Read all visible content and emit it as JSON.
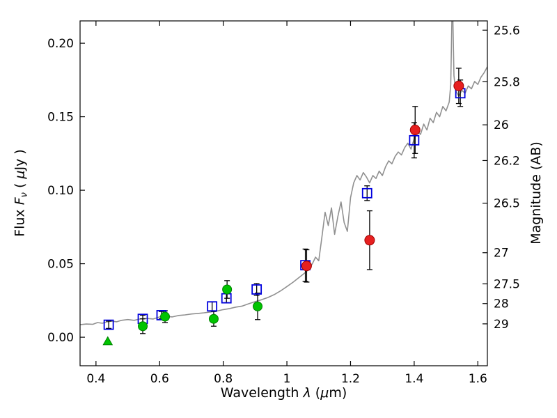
{
  "figure": {
    "background": "#ffffff",
    "frame_color": "#000000",
    "error_bar_color": "#000000"
  },
  "chart_data": {
    "type": "line",
    "title": "",
    "xlabel": "Wavelength λ (μm)",
    "ylabel": "Flux Fν ( μJy )",
    "y2label": "Magnitude (AB)",
    "xlabel_parts": {
      "t1": "Wavelength ",
      "i1": "λ",
      "t2": " (",
      "i2": "μ",
      "t3": "m)"
    },
    "ylabel_parts": {
      "t1": "Flux ",
      "i1": "F",
      "sub": "ν",
      "t2": " ( ",
      "i2": "μ",
      "t3": "Jy )"
    },
    "xlim": [
      0.35,
      1.63
    ],
    "ylim": [
      -0.0194,
      0.2152
    ],
    "grid": false,
    "legend": "none",
    "x_ticks": [
      {
        "v": 0.4,
        "label": "0.4"
      },
      {
        "v": 0.6,
        "label": "0.6"
      },
      {
        "v": 0.8,
        "label": "0.8"
      },
      {
        "v": 1.0,
        "label": "1"
      },
      {
        "v": 1.2,
        "label": "1.2"
      },
      {
        "v": 1.4,
        "label": "1.4"
      },
      {
        "v": 1.6,
        "label": "1.6"
      }
    ],
    "y_ticks": [
      {
        "v": 0.0,
        "label": "0.00"
      },
      {
        "v": 0.05,
        "label": "0.05"
      },
      {
        "v": 0.1,
        "label": "0.10"
      },
      {
        "v": 0.15,
        "label": "0.15"
      },
      {
        "v": 0.2,
        "label": "0.20"
      }
    ],
    "y2_ticks": [
      {
        "flux": 0.2089,
        "label": "25.6"
      },
      {
        "flux": 0.1738,
        "label": "25.8"
      },
      {
        "flux": 0.1445,
        "label": "26"
      },
      {
        "flux": 0.1202,
        "label": "26.2"
      },
      {
        "flux": 0.0912,
        "label": "26.5"
      },
      {
        "flux": 0.0575,
        "label": "27"
      },
      {
        "flux": 0.0363,
        "label": "27.5"
      },
      {
        "flux": 0.0229,
        "label": "28"
      },
      {
        "flux": 0.0091,
        "label": "29"
      }
    ],
    "series": [
      {
        "name": "model-spectrum",
        "kind": "line",
        "color": "#909090",
        "width": 1.6,
        "xy": [
          [
            0.35,
            0.0085
          ],
          [
            0.37,
            0.009
          ],
          [
            0.39,
            0.0088
          ],
          [
            0.405,
            0.01
          ],
          [
            0.42,
            0.0095
          ],
          [
            0.435,
            0.0105
          ],
          [
            0.45,
            0.011
          ],
          [
            0.465,
            0.0105
          ],
          [
            0.48,
            0.0115
          ],
          [
            0.5,
            0.012
          ],
          [
            0.52,
            0.0115
          ],
          [
            0.54,
            0.0125
          ],
          [
            0.56,
            0.0128
          ],
          [
            0.58,
            0.0124
          ],
          [
            0.6,
            0.0138
          ],
          [
            0.62,
            0.0142
          ],
          [
            0.64,
            0.0138
          ],
          [
            0.66,
            0.0148
          ],
          [
            0.68,
            0.0152
          ],
          [
            0.7,
            0.0158
          ],
          [
            0.72,
            0.0162
          ],
          [
            0.74,
            0.0166
          ],
          [
            0.76,
            0.0172
          ],
          [
            0.78,
            0.0178
          ],
          [
            0.8,
            0.0188
          ],
          [
            0.82,
            0.0195
          ],
          [
            0.84,
            0.0205
          ],
          [
            0.86,
            0.0212
          ],
          [
            0.88,
            0.0228
          ],
          [
            0.9,
            0.0242
          ],
          [
            0.92,
            0.0255
          ],
          [
            0.94,
            0.027
          ],
          [
            0.96,
            0.029
          ],
          [
            0.98,
            0.0315
          ],
          [
            1.0,
            0.0345
          ],
          [
            1.02,
            0.0375
          ],
          [
            1.04,
            0.041
          ],
          [
            1.055,
            0.0435
          ],
          [
            1.07,
            0.0465
          ],
          [
            1.08,
            0.05
          ],
          [
            1.09,
            0.0545
          ],
          [
            1.1,
            0.052
          ],
          [
            1.11,
            0.068
          ],
          [
            1.12,
            0.085
          ],
          [
            1.13,
            0.076
          ],
          [
            1.14,
            0.088
          ],
          [
            1.15,
            0.07
          ],
          [
            1.16,
            0.082
          ],
          [
            1.17,
            0.092
          ],
          [
            1.18,
            0.078
          ],
          [
            1.19,
            0.072
          ],
          [
            1.2,
            0.095
          ],
          [
            1.21,
            0.105
          ],
          [
            1.22,
            0.11
          ],
          [
            1.23,
            0.107
          ],
          [
            1.24,
            0.112
          ],
          [
            1.25,
            0.109
          ],
          [
            1.26,
            0.105
          ],
          [
            1.27,
            0.11
          ],
          [
            1.28,
            0.108
          ],
          [
            1.29,
            0.113
          ],
          [
            1.3,
            0.11
          ],
          [
            1.31,
            0.116
          ],
          [
            1.32,
            0.12
          ],
          [
            1.33,
            0.118
          ],
          [
            1.34,
            0.123
          ],
          [
            1.35,
            0.126
          ],
          [
            1.36,
            0.124
          ],
          [
            1.37,
            0.129
          ],
          [
            1.38,
            0.132
          ],
          [
            1.39,
            0.128
          ],
          [
            1.4,
            0.135
          ],
          [
            1.41,
            0.14
          ],
          [
            1.42,
            0.138
          ],
          [
            1.43,
            0.145
          ],
          [
            1.44,
            0.141
          ],
          [
            1.45,
            0.149
          ],
          [
            1.46,
            0.146
          ],
          [
            1.47,
            0.153
          ],
          [
            1.48,
            0.15
          ],
          [
            1.49,
            0.157
          ],
          [
            1.5,
            0.154
          ],
          [
            1.51,
            0.16
          ],
          [
            1.515,
            0.172
          ],
          [
            1.52,
            0.235
          ],
          [
            1.525,
            0.178
          ],
          [
            1.53,
            0.168
          ],
          [
            1.54,
            0.164
          ],
          [
            1.55,
            0.168
          ],
          [
            1.56,
            0.166
          ],
          [
            1.57,
            0.171
          ],
          [
            1.58,
            0.169
          ],
          [
            1.59,
            0.174
          ],
          [
            1.6,
            0.172
          ],
          [
            1.61,
            0.177
          ],
          [
            1.62,
            0.18
          ],
          [
            1.63,
            0.184
          ]
        ]
      },
      {
        "name": "photometry-blue-open-squares",
        "kind": "scatter",
        "marker": "open-square",
        "color": "#0000dd",
        "size": 13,
        "points": [
          {
            "x": 0.44,
            "y": 0.0085,
            "err": 0.0025
          },
          {
            "x": 0.547,
            "y": 0.0125,
            "err": 0.0025
          },
          {
            "x": 0.606,
            "y": 0.015,
            "err": 0.0025
          },
          {
            "x": 0.765,
            "y": 0.021,
            "err": 0.003
          },
          {
            "x": 0.81,
            "y": 0.0265,
            "err": 0.003
          },
          {
            "x": 0.905,
            "y": 0.0325,
            "err": 0.004
          },
          {
            "x": 1.058,
            "y": 0.049,
            "err": 0.011
          },
          {
            "x": 1.252,
            "y": 0.098,
            "err": 0.005
          },
          {
            "x": 1.4,
            "y": 0.134,
            "err": 0.012
          },
          {
            "x": 1.545,
            "y": 0.166,
            "err": 0.009
          }
        ]
      },
      {
        "name": "photometry-green-circles",
        "kind": "scatter",
        "marker": "circle",
        "color": "#00c400",
        "edge": "#008000",
        "size": 13,
        "points": [
          {
            "x": 0.547,
            "y": 0.0075,
            "err": 0.005
          },
          {
            "x": 0.617,
            "y": 0.014,
            "err": 0.004
          },
          {
            "x": 0.77,
            "y": 0.0125,
            "err": 0.005
          },
          {
            "x": 0.812,
            "y": 0.0325,
            "err": 0.006
          },
          {
            "x": 0.908,
            "y": 0.021,
            "err": 0.009
          }
        ]
      },
      {
        "name": "upper-limit-green-triangle",
        "kind": "scatter",
        "marker": "triangle",
        "color": "#00c400",
        "edge": "#008000",
        "size": 13,
        "points": [
          {
            "x": 0.437,
            "y": -0.0028
          }
        ]
      },
      {
        "name": "photometry-red-circles",
        "kind": "scatter",
        "marker": "circle",
        "color": "#e62020",
        "edge": "#a00000",
        "size": 14,
        "points": [
          {
            "x": 1.062,
            "y": 0.0485,
            "err": 0.011
          },
          {
            "x": 1.26,
            "y": 0.066,
            "err": 0.02
          },
          {
            "x": 1.403,
            "y": 0.141,
            "err": 0.016
          },
          {
            "x": 1.54,
            "y": 0.171,
            "err": 0.012
          }
        ]
      }
    ]
  }
}
